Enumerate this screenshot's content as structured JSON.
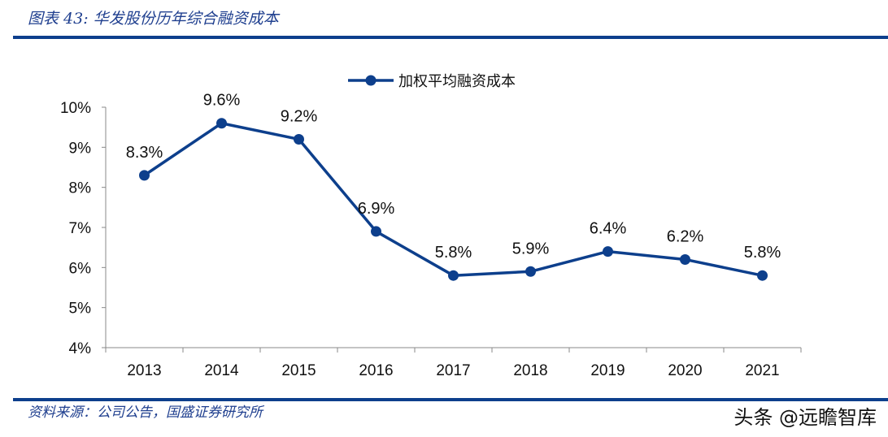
{
  "title": "图表 43:  华发股份历年综合融资成本",
  "source": "资料来源：公司公告，国盛证券研究所",
  "watermark": "头条 @远瞻智库",
  "colors": {
    "series": "#0d3f8c",
    "header_bar": "#0d3f8c"
  },
  "chart_data": {
    "type": "line",
    "categories": [
      "2013",
      "2014",
      "2015",
      "2016",
      "2017",
      "2018",
      "2019",
      "2020",
      "2021"
    ],
    "series": [
      {
        "name": "加权平均融资成本",
        "values": [
          8.3,
          9.6,
          9.2,
          6.9,
          5.8,
          5.9,
          6.4,
          6.2,
          5.8
        ],
        "data_labels": [
          "8.3%",
          "9.6%",
          "9.2%",
          "6.9%",
          "5.8%",
          "5.9%",
          "6.4%",
          "6.2%",
          "5.8%"
        ]
      }
    ],
    "y_ticks": [
      "4%",
      "5%",
      "6%",
      "7%",
      "8%",
      "9%",
      "10%"
    ],
    "ylim": [
      4,
      10
    ],
    "y_unit": "%",
    "grid": false,
    "legend_position": "top-center",
    "markers": "circle"
  }
}
